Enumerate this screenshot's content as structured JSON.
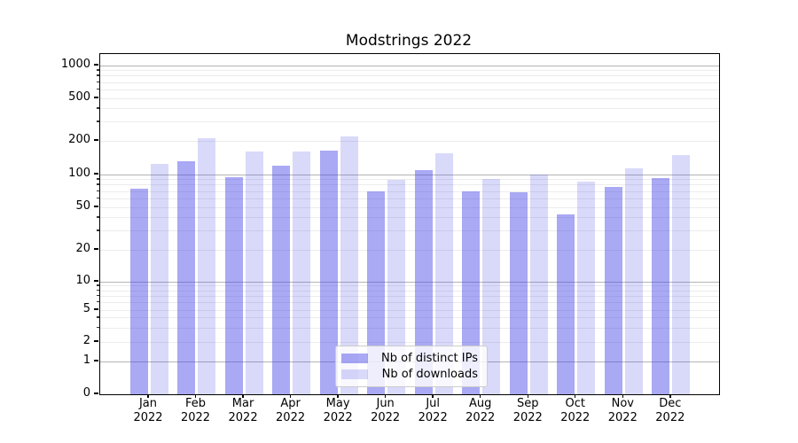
{
  "chart_data": {
    "type": "bar",
    "title": "Modstrings 2022",
    "categories": [
      "Jan",
      "Feb",
      "Mar",
      "Apr",
      "May",
      "Jun",
      "Jul",
      "Aug",
      "Sep",
      "Oct",
      "Nov",
      "Dec"
    ],
    "x_tick_second_line": "2022",
    "series": [
      {
        "name": "Nb of distinct IPs",
        "color": "#a9a9f4",
        "fill_rgba": "rgba(64,64,230,0.45)",
        "values": [
          74,
          132,
          94,
          119,
          165,
          70,
          109,
          70,
          69,
          43,
          77,
          92
        ]
      },
      {
        "name": "Nb of downloads",
        "color": "#d9d9f9",
        "fill_rgba": "rgba(64,64,230,0.20)",
        "values": [
          125,
          211,
          161,
          161,
          220,
          89,
          155,
          91,
          100,
          86,
          113,
          150
        ]
      }
    ],
    "yscale": "log-like with linear segment below 1",
    "y_ticks": [
      0,
      1,
      2,
      5,
      10,
      20,
      50,
      100,
      200,
      500,
      1000
    ],
    "ylim": [
      0,
      1000
    ],
    "xlabel": "",
    "ylabel": "",
    "grid": "horizontal, major and minor",
    "legend_position": "lower center",
    "legend_labels": [
      "Nb of distinct IPs",
      "Nb of downloads"
    ]
  }
}
